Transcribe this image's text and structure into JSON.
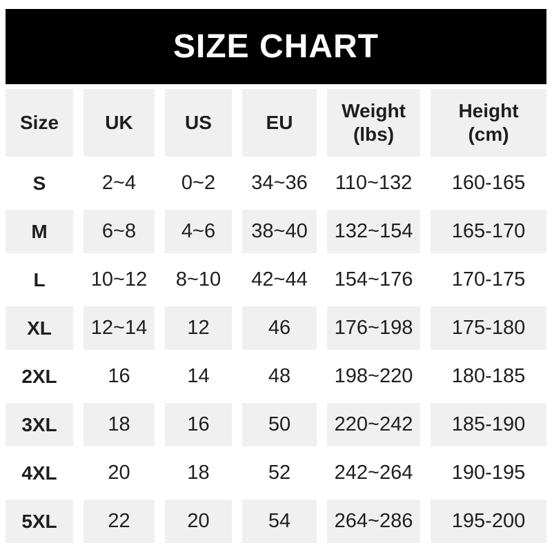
{
  "banner": {
    "title": "SIZE CHART"
  },
  "colors": {
    "banner_bg": "#000000",
    "banner_text": "#ffffff",
    "row_shade": "#f0f0f0",
    "row_plain": "#ffffff",
    "text": "#1e1e1e"
  },
  "table": {
    "columns": [
      {
        "line1": "Size",
        "line2": ""
      },
      {
        "line1": "UK",
        "line2": ""
      },
      {
        "line1": "US",
        "line2": ""
      },
      {
        "line1": "EU",
        "line2": ""
      },
      {
        "line1": "Weight",
        "line2": "(lbs)"
      },
      {
        "line1": "Height",
        "line2": "(cm)"
      }
    ],
    "rows": [
      {
        "size": "S",
        "uk": "2~4",
        "us": "0~2",
        "eu": "34~36",
        "weight_lbs": "110~132",
        "height_cm": "160-165"
      },
      {
        "size": "M",
        "uk": "6~8",
        "us": "4~6",
        "eu": "38~40",
        "weight_lbs": "132~154",
        "height_cm": "165-170"
      },
      {
        "size": "L",
        "uk": "10~12",
        "us": "8~10",
        "eu": "42~44",
        "weight_lbs": "154~176",
        "height_cm": "170-175"
      },
      {
        "size": "XL",
        "uk": "12~14",
        "us": "12",
        "eu": "46",
        "weight_lbs": "176~198",
        "height_cm": "175-180"
      },
      {
        "size": "2XL",
        "uk": "16",
        "us": "14",
        "eu": "48",
        "weight_lbs": "198~220",
        "height_cm": "180-185"
      },
      {
        "size": "3XL",
        "uk": "18",
        "us": "16",
        "eu": "50",
        "weight_lbs": "220~242",
        "height_cm": "185-190"
      },
      {
        "size": "4XL",
        "uk": "20",
        "us": "18",
        "eu": "52",
        "weight_lbs": "242~264",
        "height_cm": "190-195"
      },
      {
        "size": "5XL",
        "uk": "22",
        "us": "20",
        "eu": "54",
        "weight_lbs": "264~286",
        "height_cm": "195-200"
      }
    ]
  },
  "chart_data": {
    "type": "table",
    "title": "SIZE CHART",
    "columns": [
      "Size",
      "UK",
      "US",
      "EU",
      "Weight (lbs)",
      "Height (cm)"
    ],
    "rows": [
      [
        "S",
        "2~4",
        "0~2",
        "34~36",
        "110~132",
        "160-165"
      ],
      [
        "M",
        "6~8",
        "4~6",
        "38~40",
        "132~154",
        "165-170"
      ],
      [
        "L",
        "10~12",
        "8~10",
        "42~44",
        "154~176",
        "170-175"
      ],
      [
        "XL",
        "12~14",
        "12",
        "46",
        "176~198",
        "175-180"
      ],
      [
        "2XL",
        "16",
        "14",
        "48",
        "198~220",
        "180-185"
      ],
      [
        "3XL",
        "18",
        "16",
        "50",
        "220~242",
        "185-190"
      ],
      [
        "4XL",
        "20",
        "18",
        "52",
        "242~264",
        "190-195"
      ],
      [
        "5XL",
        "22",
        "20",
        "54",
        "264~286",
        "195-200"
      ]
    ],
    "layout": {
      "shaded_rows": [
        "header",
        "M",
        "XL",
        "3XL",
        "5XL"
      ],
      "shade_color": "#f0f0f0"
    }
  }
}
